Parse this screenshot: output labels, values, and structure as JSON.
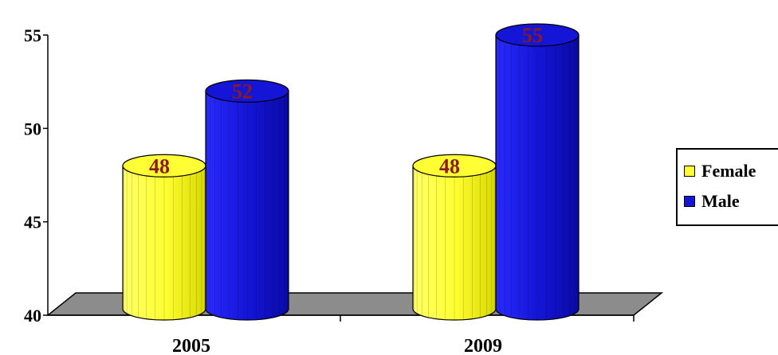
{
  "chart_data": {
    "type": "bar",
    "categories": [
      "2005",
      "2009"
    ],
    "series": [
      {
        "name": "Female",
        "values": [
          48,
          48
        ],
        "color": "#ffff33"
      },
      {
        "name": "Male",
        "values": [
          52,
          55
        ],
        "color": "#1515d8"
      }
    ],
    "ylim": [
      40,
      55
    ],
    "yticks": [
      "40",
      "45",
      "50",
      "55"
    ],
    "data_labels": [
      [
        "48",
        "48"
      ],
      [
        "52",
        "55"
      ]
    ],
    "grid": false,
    "legend_position": "right",
    "style": "3d-cylinder"
  }
}
